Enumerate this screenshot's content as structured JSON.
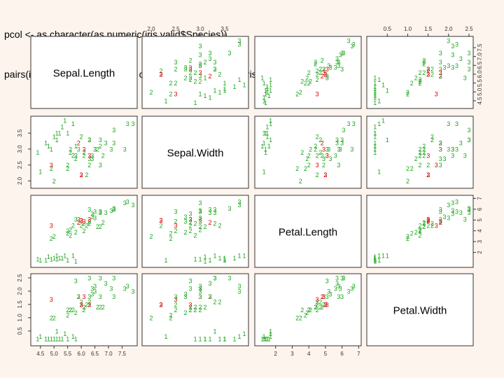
{
  "code": {
    "line1": "pcol <- as.character(as.numeric(iris.valid$Species))",
    "line2": "pairs(iris.valid[1:4], pch = pcol, col = c(\"green3\", \"red\")[(iris.valid$Species != fit)+1])"
  },
  "colors": {
    "correct": "#1aa51a",
    "misclassified": "#dd0000",
    "frame": "#333333",
    "background": "#fdf4ee",
    "plot_bg": "#ffffff"
  },
  "chart_data": {
    "type": "scatter",
    "layout": "pairs-matrix-4x4",
    "variables": [
      {
        "name": "Sepal.Length",
        "range": [
          4.3,
          7.9
        ],
        "ticks": [
          "4.5",
          "5.0",
          "5.5",
          "6.0",
          "6.5",
          "7.0",
          "7.5"
        ]
      },
      {
        "name": "Sepal.Width",
        "range": [
          1.9,
          3.9
        ],
        "ticks": [
          "2.0",
          "2.5",
          "3.0",
          "3.5"
        ]
      },
      {
        "name": "Petal.Length",
        "range": [
          1.0,
          6.9
        ],
        "ticks": [
          "2",
          "3",
          "4",
          "5",
          "6",
          "7"
        ]
      },
      {
        "name": "Petal.Width",
        "range": [
          0.1,
          2.5
        ],
        "ticks": [
          "0.5",
          "1.0",
          "1.5",
          "2.0",
          "2.5"
        ]
      }
    ],
    "points": [
      {
        "v": [
          5.1,
          3.5,
          1.4,
          0.2
        ],
        "s": "1",
        "ok": true
      },
      {
        "v": [
          4.9,
          3.0,
          1.4,
          0.2
        ],
        "s": "1",
        "ok": true
      },
      {
        "v": [
          4.7,
          3.2,
          1.3,
          0.2
        ],
        "s": "1",
        "ok": true
      },
      {
        "v": [
          5.4,
          3.9,
          1.7,
          0.4
        ],
        "s": "1",
        "ok": true
      },
      {
        "v": [
          5.0,
          3.4,
          1.5,
          0.2
        ],
        "s": "1",
        "ok": true
      },
      {
        "v": [
          4.4,
          2.9,
          1.4,
          0.2
        ],
        "s": "1",
        "ok": true
      },
      {
        "v": [
          5.8,
          3.1,
          1.2,
          0.2
        ],
        "s": "1",
        "ok": true
      },
      {
        "v": [
          5.7,
          3.8,
          1.7,
          0.3
        ],
        "s": "1",
        "ok": true
      },
      {
        "v": [
          5.1,
          3.3,
          1.7,
          0.5
        ],
        "s": "1",
        "ok": true
      },
      {
        "v": [
          5.2,
          3.5,
          1.5,
          0.2
        ],
        "s": "1",
        "ok": true
      },
      {
        "v": [
          4.8,
          3.1,
          1.6,
          0.2
        ],
        "s": "1",
        "ok": true
      },
      {
        "v": [
          5.5,
          3.5,
          1.3,
          0.2
        ],
        "s": "1",
        "ok": true
      },
      {
        "v": [
          4.5,
          2.3,
          1.3,
          0.3
        ],
        "s": "1",
        "ok": true
      },
      {
        "v": [
          5.3,
          3.7,
          1.5,
          0.2
        ],
        "s": "1",
        "ok": true
      },
      {
        "v": [
          5.7,
          2.8,
          4.5,
          1.3
        ],
        "s": "2",
        "ok": true
      },
      {
        "v": [
          6.3,
          3.3,
          4.7,
          1.6
        ],
        "s": "2",
        "ok": true
      },
      {
        "v": [
          4.9,
          2.4,
          3.3,
          1.0
        ],
        "s": "2",
        "ok": true
      },
      {
        "v": [
          5.0,
          2.0,
          3.5,
          1.0
        ],
        "s": "2",
        "ok": true
      },
      {
        "v": [
          6.1,
          2.9,
          4.7,
          1.4
        ],
        "s": "2",
        "ok": true
      },
      {
        "v": [
          5.6,
          2.9,
          3.6,
          1.3
        ],
        "s": "2",
        "ok": true
      },
      {
        "v": [
          6.7,
          3.1,
          4.4,
          1.4
        ],
        "s": "2",
        "ok": true
      },
      {
        "v": [
          6.2,
          2.2,
          4.5,
          1.5
        ],
        "s": "2",
        "ok": true
      },
      {
        "v": [
          5.9,
          3.2,
          4.8,
          1.8
        ],
        "s": "2",
        "ok": false
      },
      {
        "v": [
          6.1,
          2.8,
          4.0,
          1.3
        ],
        "s": "2",
        "ok": true
      },
      {
        "v": [
          6.3,
          2.5,
          4.9,
          1.5
        ],
        "s": "2",
        "ok": true
      },
      {
        "v": [
          6.6,
          3.0,
          4.4,
          1.4
        ],
        "s": "2",
        "ok": true
      },
      {
        "v": [
          6.8,
          2.8,
          4.8,
          1.4
        ],
        "s": "2",
        "ok": true
      },
      {
        "v": [
          6.0,
          2.2,
          5.0,
          1.5
        ],
        "s": "2",
        "ok": false
      },
      {
        "v": [
          5.5,
          2.4,
          3.8,
          1.1
        ],
        "s": "2",
        "ok": true
      },
      {
        "v": [
          5.8,
          2.7,
          3.9,
          1.2
        ],
        "s": "2",
        "ok": true
      },
      {
        "v": [
          6.0,
          3.4,
          4.5,
          1.6
        ],
        "s": "2",
        "ok": true
      },
      {
        "v": [
          5.6,
          3.0,
          4.1,
          1.3
        ],
        "s": "2",
        "ok": true
      },
      {
        "v": [
          5.5,
          2.5,
          4.0,
          1.3
        ],
        "s": "2",
        "ok": true
      },
      {
        "v": [
          6.3,
          3.3,
          6.0,
          2.5
        ],
        "s": "3",
        "ok": true
      },
      {
        "v": [
          7.1,
          3.0,
          5.9,
          2.1
        ],
        "s": "3",
        "ok": true
      },
      {
        "v": [
          6.5,
          3.0,
          5.8,
          2.2
        ],
        "s": "3",
        "ok": true
      },
      {
        "v": [
          7.6,
          3.0,
          6.6,
          2.1
        ],
        "s": "3",
        "ok": true
      },
      {
        "v": [
          4.9,
          2.5,
          4.5,
          1.7
        ],
        "s": "3",
        "ok": false
      },
      {
        "v": [
          6.7,
          2.5,
          5.8,
          1.8
        ],
        "s": "3",
        "ok": true
      },
      {
        "v": [
          7.2,
          3.6,
          6.1,
          2.5
        ],
        "s": "3",
        "ok": true
      },
      {
        "v": [
          6.4,
          2.7,
          5.3,
          1.9
        ],
        "s": "3",
        "ok": true
      },
      {
        "v": [
          5.8,
          2.8,
          5.1,
          2.4
        ],
        "s": "3",
        "ok": true
      },
      {
        "v": [
          7.7,
          3.8,
          6.7,
          2.2
        ],
        "s": "3",
        "ok": true
      },
      {
        "v": [
          6.0,
          2.2,
          5.0,
          1.5
        ],
        "s": "3",
        "ok": false
      },
      {
        "v": [
          6.9,
          3.2,
          5.7,
          2.3
        ],
        "s": "3",
        "ok": true
      },
      {
        "v": [
          6.3,
          2.7,
          4.9,
          1.8
        ],
        "s": "3",
        "ok": true
      },
      {
        "v": [
          7.2,
          3.2,
          6.0,
          1.8
        ],
        "s": "3",
        "ok": true
      },
      {
        "v": [
          6.1,
          3.0,
          4.9,
          1.8
        ],
        "s": "3",
        "ok": false
      },
      {
        "v": [
          6.4,
          2.8,
          5.6,
          2.1
        ],
        "s": "3",
        "ok": true
      },
      {
        "v": [
          7.9,
          3.8,
          6.4,
          2.0
        ],
        "s": "3",
        "ok": true
      },
      {
        "v": [
          6.3,
          2.8,
          5.1,
          1.5
        ],
        "s": "3",
        "ok": false
      },
      {
        "v": [
          6.7,
          3.3,
          5.7,
          2.5
        ],
        "s": "3",
        "ok": true
      },
      {
        "v": [
          6.5,
          3.0,
          5.2,
          2.0
        ],
        "s": "3",
        "ok": true
      },
      {
        "v": [
          5.9,
          3.0,
          5.1,
          1.8
        ],
        "s": "3",
        "ok": true
      }
    ]
  }
}
